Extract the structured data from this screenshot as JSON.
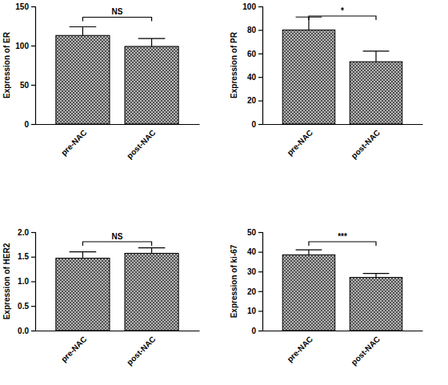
{
  "chart_data": [
    {
      "type": "bar",
      "y_label": "Expression of ER",
      "categories": [
        "pre-NAC",
        "post-NAC"
      ],
      "values": [
        113,
        99
      ],
      "errors": [
        11,
        10
      ],
      "annotation": "NS",
      "color": "#b8b8b8",
      "ylim": [
        0,
        150
      ],
      "yticks": [
        0,
        50,
        100,
        150
      ]
    },
    {
      "type": "bar",
      "y_label": "Expression of PR",
      "categories": [
        "pre-NAC",
        "post-NAC"
      ],
      "values": [
        80,
        53
      ],
      "errors": [
        11,
        9
      ],
      "annotation": "*",
      "color": "#b8b8b8",
      "ylim": [
        0,
        100
      ],
      "yticks": [
        0,
        20,
        40,
        60,
        80,
        100
      ]
    },
    {
      "type": "bar",
      "y_label": "Expression of HER2",
      "categories": [
        "pre-NAC",
        "post-NAC"
      ],
      "values": [
        1.47,
        1.57
      ],
      "errors": [
        0.13,
        0.11
      ],
      "annotation": "NS",
      "color": "#b8b8b8",
      "ylim": [
        0,
        2
      ],
      "yticks": [
        {
          "value": 0,
          "label": "0.0"
        },
        0.5,
        {
          "value": 1,
          "label": "1.0"
        },
        1.5,
        {
          "value": 2,
          "label": "2.0"
        }
      ]
    },
    {
      "type": "bar",
      "y_label": "Expression of ki-67",
      "categories": [
        "pre-NAC",
        "post-NAC"
      ],
      "values": [
        38.5,
        27
      ],
      "errors": [
        2.5,
        2
      ],
      "annotation": "***",
      "color": "#b8b8b8",
      "ylim": [
        0,
        50
      ],
      "yticks": [
        0,
        10,
        20,
        30,
        40,
        50
      ]
    }
  ]
}
